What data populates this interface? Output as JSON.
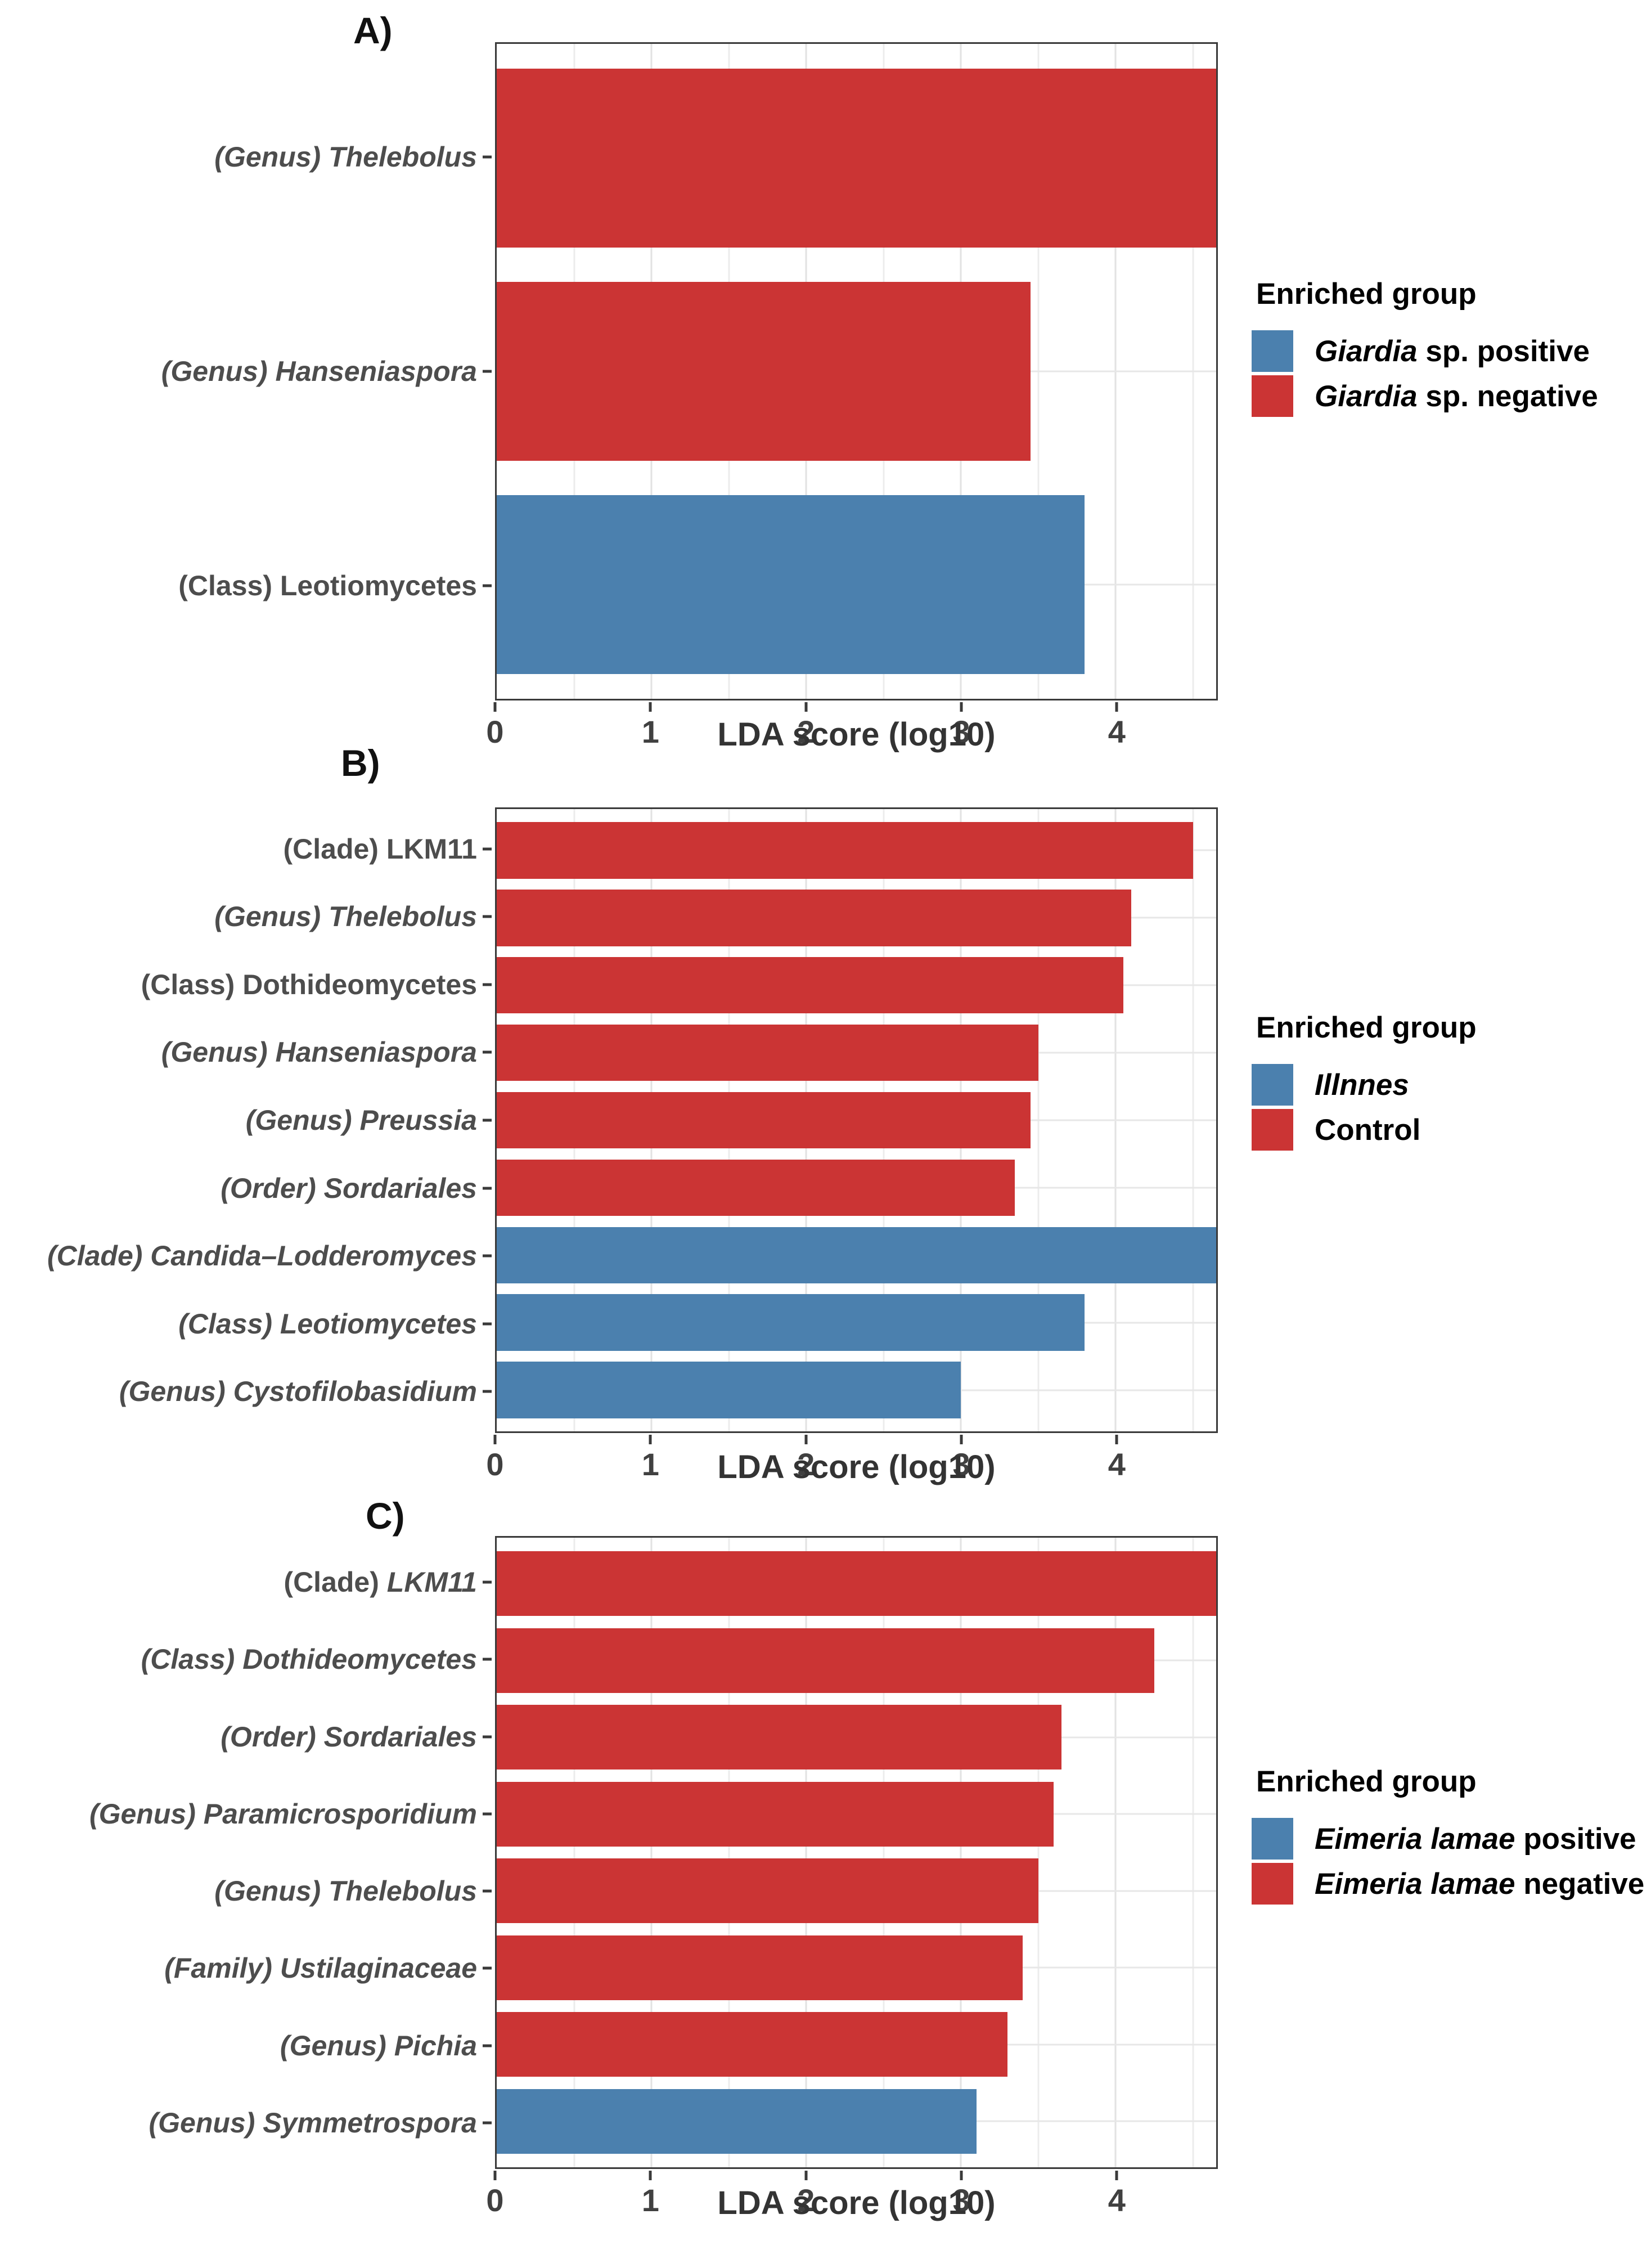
{
  "colors": {
    "blue": "#4B80AE",
    "red": "#CB3434",
    "panel_border": "#3a3a3a",
    "gridline": "#e2e2e2",
    "y_label_text": "#4d4d4d",
    "tick_text": "#404040"
  },
  "chart_data": [
    {
      "type": "bar",
      "orientation": "horizontal",
      "panel_letter": "A)",
      "xlabel": "LDA score (log10)",
      "xlim": [
        0,
        4.65
      ],
      "xticks": [
        0,
        1,
        2,
        3,
        4
      ],
      "grid": "on",
      "legend_position": "right",
      "legend": {
        "title": "Enriched group",
        "items": [
          {
            "color": "blue",
            "segments": [
              {
                "t": "Giardia",
                "i": true
              },
              {
                "t": " sp. positive",
                "i": false
              }
            ]
          },
          {
            "color": "red",
            "segments": [
              {
                "t": "Giardia",
                "i": true
              },
              {
                "t": " sp. negative",
                "i": false
              }
            ]
          }
        ]
      },
      "bars": [
        {
          "segments": [
            {
              "t": "(Genus) Thelebolus",
              "i": true
            }
          ],
          "value": 4.65,
          "color": "red",
          "group": "Giardia sp. negative"
        },
        {
          "segments": [
            {
              "t": "(Genus) Hanseniaspora",
              "i": true
            }
          ],
          "value": 3.45,
          "color": "red",
          "group": "Giardia sp. negative"
        },
        {
          "segments": [
            {
              "t": "(Class) Leotiomycetes",
              "i": false
            }
          ],
          "value": 3.8,
          "color": "blue",
          "group": "Giardia sp. positive"
        }
      ]
    },
    {
      "type": "bar",
      "orientation": "horizontal",
      "panel_letter": "B)",
      "xlabel": "LDA score (log10)",
      "xlim": [
        0,
        4.65
      ],
      "xticks": [
        0,
        1,
        2,
        3,
        4
      ],
      "grid": "on",
      "legend_position": "right",
      "legend": {
        "title": "Enriched group",
        "items": [
          {
            "color": "blue",
            "segments": [
              {
                "t": "Illnnes",
                "i": true
              }
            ]
          },
          {
            "color": "red",
            "segments": [
              {
                "t": "Control",
                "i": false
              }
            ]
          }
        ]
      },
      "bars": [
        {
          "segments": [
            {
              "t": "(Clade) LKM11",
              "i": false
            }
          ],
          "value": 4.5,
          "color": "red",
          "group": "Control"
        },
        {
          "segments": [
            {
              "t": "(Genus) Thelebolus",
              "i": true
            }
          ],
          "value": 4.1,
          "color": "red",
          "group": "Control"
        },
        {
          "segments": [
            {
              "t": "(Class) Dothideomycetes",
              "i": false
            }
          ],
          "value": 4.05,
          "color": "red",
          "group": "Control"
        },
        {
          "segments": [
            {
              "t": "(Genus) Hanseniaspora",
              "i": true
            }
          ],
          "value": 3.5,
          "color": "red",
          "group": "Control"
        },
        {
          "segments": [
            {
              "t": "(Genus) Preussia",
              "i": true
            }
          ],
          "value": 3.45,
          "color": "red",
          "group": "Control"
        },
        {
          "segments": [
            {
              "t": "(Order) Sordariales",
              "i": true
            }
          ],
          "value": 3.35,
          "color": "red",
          "group": "Control"
        },
        {
          "segments": [
            {
              "t": "(Clade) Candida–Lodderomyces",
              "i": true
            }
          ],
          "value": 4.65,
          "color": "blue",
          "group": "Illnnes"
        },
        {
          "segments": [
            {
              "t": "(Class) Leotiomycetes",
              "i": true
            }
          ],
          "value": 3.8,
          "color": "blue",
          "group": "Illnnes"
        },
        {
          "segments": [
            {
              "t": "(Genus) Cystofilobasidium",
              "i": true
            }
          ],
          "value": 3.0,
          "color": "blue",
          "group": "Illnnes"
        }
      ]
    },
    {
      "type": "bar",
      "orientation": "horizontal",
      "panel_letter": "C)",
      "xlabel": "LDA score (log10)",
      "xlim": [
        0,
        4.65
      ],
      "xticks": [
        0,
        1,
        2,
        3,
        4
      ],
      "grid": "on",
      "legend_position": "right",
      "legend": {
        "title": "Enriched group",
        "items": [
          {
            "color": "blue",
            "segments": [
              {
                "t": "Eimeria lamae",
                "i": true
              },
              {
                "t": " positive",
                "i": false
              }
            ]
          },
          {
            "color": "red",
            "segments": [
              {
                "t": "Eimeria lamae",
                "i": true
              },
              {
                "t": " negative",
                "i": false
              }
            ]
          }
        ]
      },
      "bars": [
        {
          "segments": [
            {
              "t": "(Clade) ",
              "i": false
            },
            {
              "t": "LKM11",
              "i": true
            }
          ],
          "value": 4.65,
          "color": "red",
          "group": "Eimeria lamae negative"
        },
        {
          "segments": [
            {
              "t": "(Class) Dothideomycetes",
              "i": true
            }
          ],
          "value": 4.25,
          "color": "red",
          "group": "Eimeria lamae negative"
        },
        {
          "segments": [
            {
              "t": "(Order) Sordariales",
              "i": true
            }
          ],
          "value": 3.65,
          "color": "red",
          "group": "Eimeria lamae negative"
        },
        {
          "segments": [
            {
              "t": "(Genus) Paramicrosporidium",
              "i": true
            }
          ],
          "value": 3.6,
          "color": "red",
          "group": "Eimeria lamae negative"
        },
        {
          "segments": [
            {
              "t": "(Genus) Thelebolus",
              "i": true
            }
          ],
          "value": 3.5,
          "color": "red",
          "group": "Eimeria lamae negative"
        },
        {
          "segments": [
            {
              "t": "(Family) Ustilaginaceae",
              "i": true
            }
          ],
          "value": 3.4,
          "color": "red",
          "group": "Eimeria lamae negative"
        },
        {
          "segments": [
            {
              "t": "(Genus) Pichia",
              "i": true
            }
          ],
          "value": 3.3,
          "color": "red",
          "group": "Eimeria lamae negative"
        },
        {
          "segments": [
            {
              "t": "(Genus) Symmetrospora",
              "i": true
            }
          ],
          "value": 3.1,
          "color": "blue",
          "group": "Eimeria lamae positive"
        }
      ]
    }
  ]
}
